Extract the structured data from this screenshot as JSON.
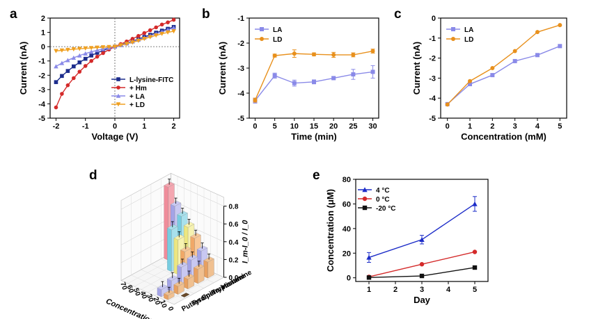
{
  "chart_data": [
    {
      "panel": "a",
      "type": "line",
      "xlabel": "Voltage (V)",
      "ylabel": "Current (nA)",
      "xlim": [
        -2.2,
        2.2
      ],
      "ylim": [
        -5,
        2
      ],
      "xticks": [
        "-2",
        "-1",
        "0",
        "1",
        "2"
      ],
      "yticks": [
        "-5",
        "-4",
        "-3",
        "-2",
        "-1",
        "0",
        "1",
        "2"
      ],
      "legend_position": "bottom-right",
      "zero_line": true,
      "x": [
        -2.0,
        -1.8,
        -1.6,
        -1.4,
        -1.2,
        -1.0,
        -0.8,
        -0.6,
        -0.4,
        -0.2,
        0.0,
        0.2,
        0.4,
        0.6,
        0.8,
        1.0,
        1.2,
        1.4,
        1.6,
        1.8,
        2.0
      ],
      "series": [
        {
          "name": "L-lysine-FITC",
          "color": "#1c2c8c",
          "marker": "square",
          "values": [
            -2.48,
            -2.05,
            -1.7,
            -1.38,
            -1.1,
            -0.85,
            -0.62,
            -0.43,
            -0.26,
            -0.12,
            0.0,
            0.12,
            0.25,
            0.39,
            0.53,
            0.68,
            0.83,
            0.98,
            1.12,
            1.25,
            1.38
          ]
        },
        {
          "name": "+ Hm",
          "color": "#d42a2a",
          "marker": "circle",
          "values": [
            -4.25,
            -3.3,
            -2.7,
            -2.2,
            -1.75,
            -1.35,
            -1.0,
            -0.7,
            -0.45,
            -0.2,
            0.0,
            0.18,
            0.36,
            0.55,
            0.75,
            0.95,
            1.15,
            1.35,
            1.55,
            1.7,
            1.88
          ]
        },
        {
          "name": "+ LA",
          "color": "#8a8ae8",
          "marker": "triangle-up",
          "values": [
            -1.38,
            -1.15,
            -0.95,
            -0.78,
            -0.62,
            -0.48,
            -0.36,
            -0.25,
            -0.16,
            -0.08,
            0.0,
            0.1,
            0.22,
            0.35,
            0.48,
            0.62,
            0.76,
            0.9,
            1.04,
            1.18,
            1.32
          ]
        },
        {
          "name": "+ LD",
          "color": "#f0a020",
          "marker": "triangle-down",
          "values": [
            -0.3,
            -0.26,
            -0.22,
            -0.18,
            -0.15,
            -0.12,
            -0.09,
            -0.06,
            -0.04,
            -0.02,
            0.0,
            0.1,
            0.2,
            0.3,
            0.42,
            0.55,
            0.67,
            0.79,
            0.9,
            1.0,
            1.08
          ]
        }
      ]
    },
    {
      "panel": "b",
      "type": "line",
      "xlabel": "Time (min)",
      "ylabel": "Current (nA)",
      "xlim": [
        -1.5,
        31.5
      ],
      "ylim": [
        -5,
        -1
      ],
      "xticks": [
        "0",
        "5",
        "10",
        "15",
        "20",
        "25",
        "30"
      ],
      "yticks": [
        "-1",
        "-2",
        "-3",
        "-4",
        "-5"
      ],
      "legend_position": "top-left",
      "x": [
        0,
        5,
        10,
        15,
        20,
        25,
        30
      ],
      "series": [
        {
          "name": "LA",
          "color": "#8a8ae8",
          "marker": "square",
          "values": [
            -4.3,
            -3.3,
            -3.6,
            -3.55,
            -3.4,
            -3.25,
            -3.15
          ],
          "errors": [
            0.1,
            0.1,
            0.12,
            0.08,
            0.06,
            0.2,
            0.25
          ]
        },
        {
          "name": "LD",
          "color": "#e8901c",
          "marker": "circle",
          "values": [
            -4.28,
            -2.5,
            -2.42,
            -2.45,
            -2.47,
            -2.47,
            -2.32
          ],
          "errors": [
            0.08,
            0.06,
            0.15,
            0.06,
            0.1,
            0.08,
            0.08
          ]
        }
      ]
    },
    {
      "panel": "c",
      "type": "line",
      "xlabel": "Concentration (mM)",
      "ylabel": "Current (nA)",
      "xlim": [
        -0.3,
        5.3
      ],
      "ylim": [
        -5,
        0
      ],
      "xticks": [
        "0",
        "1",
        "2",
        "3",
        "4",
        "5"
      ],
      "yticks": [
        "0",
        "-1",
        "-2",
        "-3",
        "-4",
        "-5"
      ],
      "legend_position": "top-left",
      "x": [
        0,
        1,
        2,
        3,
        4,
        5
      ],
      "series": [
        {
          "name": "LA",
          "color": "#8a8ae8",
          "marker": "square",
          "values": [
            -4.3,
            -3.3,
            -2.85,
            -2.15,
            -1.85,
            -1.4
          ]
        },
        {
          "name": "LD",
          "color": "#e8901c",
          "marker": "circle",
          "values": [
            -4.32,
            -3.15,
            -2.5,
            -1.65,
            -0.7,
            -0.35
          ]
        }
      ]
    },
    {
      "panel": "d",
      "type": "bar",
      "variant": "3d",
      "zlabel": "I_m-I_0 / I_0",
      "xlabel": "Concentration μM",
      "concentrations": [
        "70",
        "60",
        "50",
        "40",
        "30",
        "20",
        "10",
        "0"
      ],
      "analytes": [
        "Histamine",
        "Tryptamine",
        "Spermine",
        "Tyramine",
        "Putrescine"
      ],
      "zticks": [
        "0.0",
        "0.2",
        "0.4",
        "0.6",
        "0.8"
      ],
      "values": [
        {
          "concentration": "70",
          "by_analyte": [
            0.82,
            0.0,
            0.0,
            0.0,
            0.0
          ]
        },
        {
          "concentration": "60",
          "by_analyte": [
            0.64,
            0.0,
            0.0,
            0.0,
            0.0
          ]
        },
        {
          "concentration": "50",
          "by_analyte": [
            0.56,
            0.47,
            0.0,
            0.0,
            0.0
          ]
        },
        {
          "concentration": "40",
          "by_analyte": [
            0.47,
            0.39,
            0.0,
            0.0,
            0.0
          ]
        },
        {
          "concentration": "30",
          "by_analyte": [
            0.38,
            0.29,
            0.0,
            0.0,
            0.0
          ]
        },
        {
          "concentration": "20",
          "by_analyte": [
            0.27,
            0.23,
            0.21,
            0.12,
            0.08
          ]
        },
        {
          "concentration": "10",
          "by_analyte": [
            0.18,
            0.16,
            0.11,
            0.09,
            0.05
          ]
        },
        {
          "concentration": "0",
          "by_analyte": [
            0.0,
            0.0,
            0.0,
            0.0,
            0.0
          ]
        }
      ]
    },
    {
      "panel": "e",
      "type": "line",
      "xlabel": "Day",
      "ylabel": "Concentration (μM)",
      "xlim": [
        0.5,
        5.5
      ],
      "ylim": [
        -3,
        80
      ],
      "xticks": [
        "1",
        "2",
        "3",
        "4",
        "5"
      ],
      "yticks": [
        "0",
        "20",
        "40",
        "60",
        "80"
      ],
      "legend_position": "top-left",
      "x": [
        1,
        3,
        5
      ],
      "series": [
        {
          "name": "4 °C",
          "color": "#1c2cc8",
          "marker": "triangle-up",
          "values": [
            16.5,
            31,
            60
          ],
          "errors": [
            4,
            3.5,
            6
          ]
        },
        {
          "name": "0 °C",
          "color": "#d42a2a",
          "marker": "circle",
          "values": [
            0.8,
            11,
            21
          ],
          "errors": [
            0.5,
            0.5,
            0.5
          ]
        },
        {
          "name": "-20 °C",
          "color": "#111111",
          "marker": "square",
          "values": [
            0.2,
            1.5,
            8.3
          ],
          "errors": [
            0.3,
            0.3,
            0.3
          ]
        }
      ]
    }
  ],
  "panel_labels": [
    "a",
    "b",
    "c",
    "d",
    "e"
  ]
}
